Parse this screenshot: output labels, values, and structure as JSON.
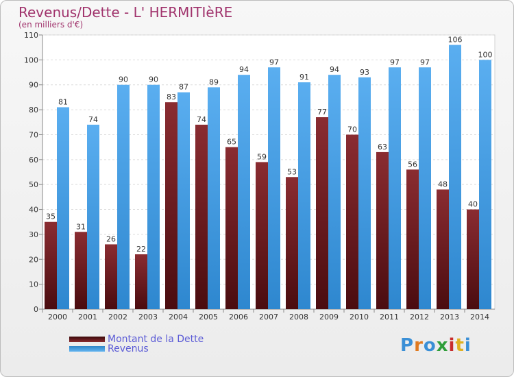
{
  "header": {
    "title": "Revenus/Dette - L' HERMITIèRE",
    "subtitle": "(en milliers d'€)"
  },
  "colors": {
    "debt": "#7a1f24",
    "revenue": "#3e9fe6",
    "title": "#a0336c",
    "legend_text": "#5b5bd6"
  },
  "logo": {
    "text": "Proxiti"
  },
  "chart_data": {
    "type": "bar",
    "categories": [
      "2000",
      "2001",
      "2002",
      "2003",
      "2004",
      "2005",
      "2006",
      "2007",
      "2008",
      "2009",
      "2010",
      "2011",
      "2012",
      "2013",
      "2014"
    ],
    "series": [
      {
        "name": "Montant de la Dette",
        "values": [
          35,
          31,
          26,
          22,
          83,
          74,
          65,
          59,
          53,
          77,
          70,
          63,
          56,
          48,
          40
        ]
      },
      {
        "name": "Revenus",
        "values": [
          81,
          74,
          90,
          90,
          87,
          89,
          94,
          97,
          91,
          94,
          93,
          97,
          97,
          106,
          100
        ]
      }
    ],
    "ylim": [
      0,
      110
    ],
    "yticks": [
      0,
      10,
      20,
      30,
      40,
      50,
      60,
      70,
      80,
      90,
      100,
      110
    ],
    "grid": true,
    "legend": "bottom-left"
  }
}
